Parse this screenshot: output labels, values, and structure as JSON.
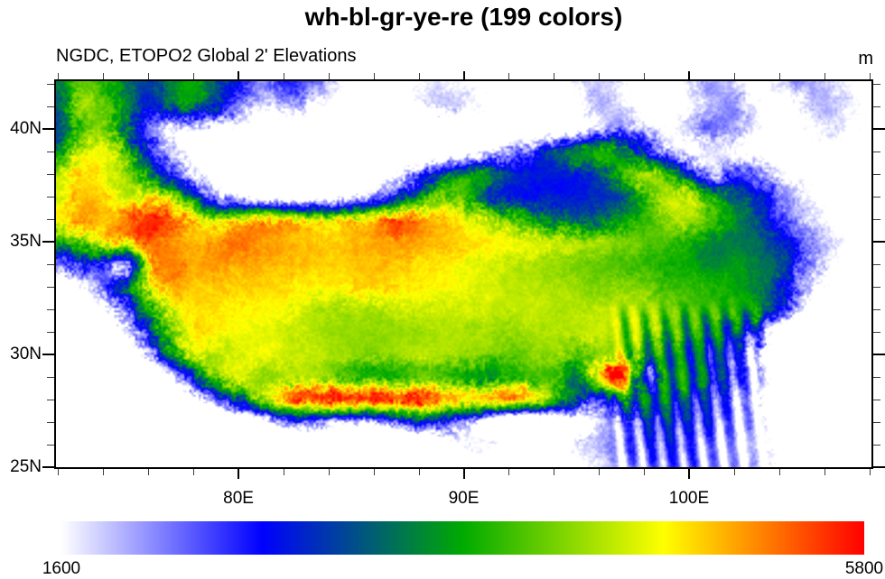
{
  "figure": {
    "title": "wh-bl-gr-ye-re (199 colors)",
    "subtitle": "NGDC, ETOPO2 Global 2' Elevations",
    "units_label": "m"
  },
  "axes": {
    "x": {
      "major_ticks": [
        {
          "value": 80,
          "label": "80E"
        },
        {
          "value": 90,
          "label": "90E"
        },
        {
          "value": 100,
          "label": "100E"
        }
      ],
      "minor_step": 2,
      "min": 71.9,
      "max": 108.1
    },
    "y": {
      "major_ticks": [
        {
          "value": 40,
          "label": "40N"
        },
        {
          "value": 35,
          "label": "35N"
        },
        {
          "value": 30,
          "label": "30N"
        },
        {
          "value": 25,
          "label": "25N"
        }
      ],
      "minor_step": 1,
      "min": 25.0,
      "max": 42.1
    }
  },
  "colorbar": {
    "min_label": "1600",
    "max_label": "5800",
    "min": 1600,
    "max": 5800,
    "anchors": [
      "#FFFFFF",
      "#0000FF",
      "#00AA00",
      "#FFFF00",
      "#FF0000"
    ]
  },
  "chart_data": {
    "type": "heatmap",
    "title": "wh-bl-gr-ye-re (199 colors)",
    "subtitle": "NGDC, ETOPO2 Global 2' Elevations",
    "units": "m",
    "lon_range": [
      71.9,
      108.1
    ],
    "lat_range": [
      25.0,
      42.1
    ],
    "colormap": {
      "name": "wh-bl-gr-ye-re",
      "n_colors": 199,
      "min": 1600,
      "max": 5800,
      "anchors": [
        "#FFFFFF",
        "#0000FF",
        "#00AA00",
        "#FFFF00",
        "#FF0000"
      ],
      "below_min_color": "#FFFFFF"
    },
    "grid": {
      "lon_start": 72,
      "lon_step": 1,
      "lat_start": 42,
      "lat_step": -1,
      "elevation_m": [
        [
          3400,
          4100,
          3900,
          3400,
          3000,
          3500,
          3700,
          3200,
          2600,
          2100,
          2500,
          2300,
          1800,
          1300,
          1000,
          1400,
          1600,
          1700,
          1600,
          1400,
          1000,
          1100,
          1300,
          1600,
          1800,
          1600,
          1300,
          1200,
          1700,
          2000,
          1800,
          1400,
          1700,
          2000,
          1900,
          1600,
          1400
        ],
        [
          3200,
          4300,
          4100,
          3500,
          2800,
          3200,
          3400,
          2800,
          2200,
          1700,
          1900,
          1700,
          1400,
          1150,
          1000,
          1200,
          1500,
          1800,
          1700,
          1500,
          1200,
          1000,
          1200,
          1500,
          1900,
          1700,
          1400,
          1300,
          1600,
          1900,
          2100,
          1600,
          1400,
          1600,
          1900,
          1700,
          1500
        ],
        [
          3000,
          3900,
          4200,
          3300,
          2200,
          1700,
          1500,
          1400,
          1400,
          1300,
          1250,
          1200,
          1150,
          1100,
          1000,
          950,
          900,
          880,
          880,
          900,
          950,
          1000,
          1150,
          1400,
          1800,
          2100,
          1800,
          1500,
          1800,
          2200,
          2000,
          1600,
          1400,
          1500,
          1700,
          1600,
          1400
        ],
        [
          3600,
          4500,
          4700,
          4000,
          2800,
          1900,
          1400,
          1300,
          1250,
          1200,
          1150,
          1100,
          1080,
          1050,
          1020,
          1000,
          1000,
          1050,
          1200,
          1500,
          1900,
          2400,
          3000,
          3500,
          3700,
          3500,
          2800,
          2000,
          1500,
          1700,
          1600,
          1450,
          1350,
          1300,
          1450,
          1350,
          1250
        ],
        [
          4400,
          4900,
          4700,
          4300,
          3500,
          2500,
          1700,
          1400,
          1280,
          1220,
          1160,
          1120,
          1100,
          1100,
          1200,
          1500,
          2200,
          3000,
          3600,
          3400,
          2900,
          2800,
          2750,
          2800,
          3100,
          3900,
          4300,
          3900,
          2900,
          2000,
          2400,
          2100,
          1600,
          1400,
          1300,
          1250,
          1200
        ],
        [
          4600,
          5000,
          4900,
          4500,
          4700,
          4200,
          3000,
          2000,
          1500,
          1400,
          1350,
          1300,
          1350,
          1500,
          2000,
          2800,
          3600,
          4200,
          3900,
          3100,
          2800,
          2760,
          2760,
          2800,
          2900,
          3100,
          3800,
          4500,
          4300,
          3700,
          3300,
          2800,
          2200,
          1800,
          1500,
          1350,
          1250
        ],
        [
          4800,
          5100,
          5000,
          5200,
          5600,
          5400,
          4800,
          4300,
          4700,
          4900,
          4700,
          4500,
          4400,
          4600,
          4900,
          5300,
          5100,
          4900,
          4700,
          4400,
          4000,
          3600,
          3400,
          3200,
          3300,
          3600,
          3900,
          4300,
          4400,
          4000,
          3500,
          3100,
          2500,
          1900,
          1550,
          1400,
          1300
        ],
        [
          3600,
          4200,
          4600,
          5000,
          5400,
          5200,
          5000,
          5100,
          5300,
          5200,
          5100,
          5000,
          4950,
          5000,
          5100,
          5200,
          5100,
          5000,
          4900,
          4800,
          4700,
          4600,
          4500,
          4400,
          4300,
          4200,
          4100,
          4000,
          3800,
          3500,
          3400,
          3300,
          2900,
          2300,
          1800,
          1500,
          1400
        ],
        [
          2200,
          2600,
          2600,
          1800,
          4800,
          5300,
          5100,
          5200,
          5100,
          5050,
          5000,
          4950,
          4900,
          4950,
          5000,
          5000,
          4900,
          4800,
          4700,
          4600,
          4500,
          4400,
          4300,
          4200,
          4100,
          4000,
          3900,
          3800,
          3700,
          3500,
          3600,
          3400,
          3200,
          2400,
          1700,
          1300,
          1100
        ],
        [
          800,
          1500,
          2200,
          3200,
          4600,
          5100,
          5000,
          5000,
          4950,
          4900,
          4850,
          4800,
          4800,
          4850,
          4900,
          4850,
          4800,
          4750,
          4700,
          4600,
          4500,
          4450,
          4400,
          4300,
          4200,
          4300,
          4200,
          4000,
          3900,
          3800,
          3700,
          3500,
          3000,
          2000,
          1500,
          900,
          700
        ],
        [
          400,
          700,
          1400,
          2400,
          3600,
          4600,
          4900,
          4850,
          4800,
          4780,
          4750,
          4500,
          4450,
          4400,
          4450,
          4500,
          4550,
          4550,
          4550,
          4500,
          4500,
          4500,
          4450,
          4400,
          4450,
          4500,
          4400,
          4200,
          4000,
          3900,
          3800,
          3600,
          2800,
          1500,
          800,
          500,
          400
        ],
        [
          250,
          400,
          800,
          1600,
          2800,
          4200,
          4800,
          4750,
          4700,
          4650,
          4600,
          4450,
          4350,
          4300,
          4300,
          4300,
          4350,
          4450,
          4400,
          4350,
          4300,
          4350,
          4400,
          4450,
          4500,
          4400,
          4200,
          4000,
          3800,
          3500,
          3200,
          2600,
          1200,
          500,
          400,
          350,
          300
        ],
        [
          200,
          300,
          500,
          900,
          1800,
          3500,
          4500,
          4400,
          4600,
          4700,
          4600,
          4500,
          4400,
          4300,
          4200,
          4300,
          4400,
          4400,
          4300,
          4200,
          4100,
          4200,
          4300,
          4000,
          4300,
          4500,
          3800,
          3500,
          3300,
          3000,
          2600,
          1800,
          700,
          400,
          350,
          300,
          300
        ],
        [
          200,
          250,
          350,
          500,
          800,
          1500,
          3000,
          4200,
          4600,
          4300,
          4400,
          4500,
          4300,
          4000,
          3800,
          3900,
          4100,
          4000,
          3700,
          3600,
          3800,
          4000,
          3900,
          3400,
          4800,
          6000,
          2800,
          3600,
          3500,
          3100,
          2500,
          1900,
          1100,
          500,
          400,
          350,
          400
        ],
        [
          150,
          200,
          250,
          350,
          500,
          700,
          1200,
          2200,
          3200,
          4200,
          5000,
          5400,
          5600,
          5500,
          5600,
          5400,
          5600,
          5200,
          4800,
          5000,
          5200,
          4600,
          3800,
          3000,
          2400,
          3500,
          3400,
          3400,
          3000,
          2600,
          2200,
          1700,
          900,
          600,
          500,
          500,
          600
        ],
        [
          120,
          150,
          200,
          250,
          300,
          350,
          400,
          500,
          700,
          1200,
          1800,
          2200,
          2000,
          1700,
          1900,
          2300,
          2800,
          2600,
          2200,
          1200,
          300,
          300,
          600,
          1200,
          1800,
          2200,
          2600,
          2800,
          2600,
          2400,
          2100,
          1800,
          1300,
          800,
          600,
          700,
          800
        ],
        [
          100,
          120,
          150,
          200,
          250,
          280,
          300,
          350,
          400,
          500,
          600,
          700,
          600,
          400,
          300,
          300,
          400,
          1000,
          1500,
          1600,
          1300,
          500,
          1000,
          1600,
          1900,
          2100,
          2300,
          2500,
          2300,
          2100,
          1900,
          1700,
          1400,
          900,
          700,
          800,
          900
        ],
        [
          80,
          100,
          120,
          150,
          200,
          220,
          250,
          280,
          300,
          350,
          400,
          450,
          400,
          300,
          250,
          250,
          300,
          800,
          1300,
          1400,
          1100,
          600,
          1100,
          1500,
          1700,
          1900,
          2100,
          2300,
          2200,
          2000,
          1900,
          1800,
          1500,
          1100,
          900,
          1000,
          1100
        ]
      ]
    }
  }
}
